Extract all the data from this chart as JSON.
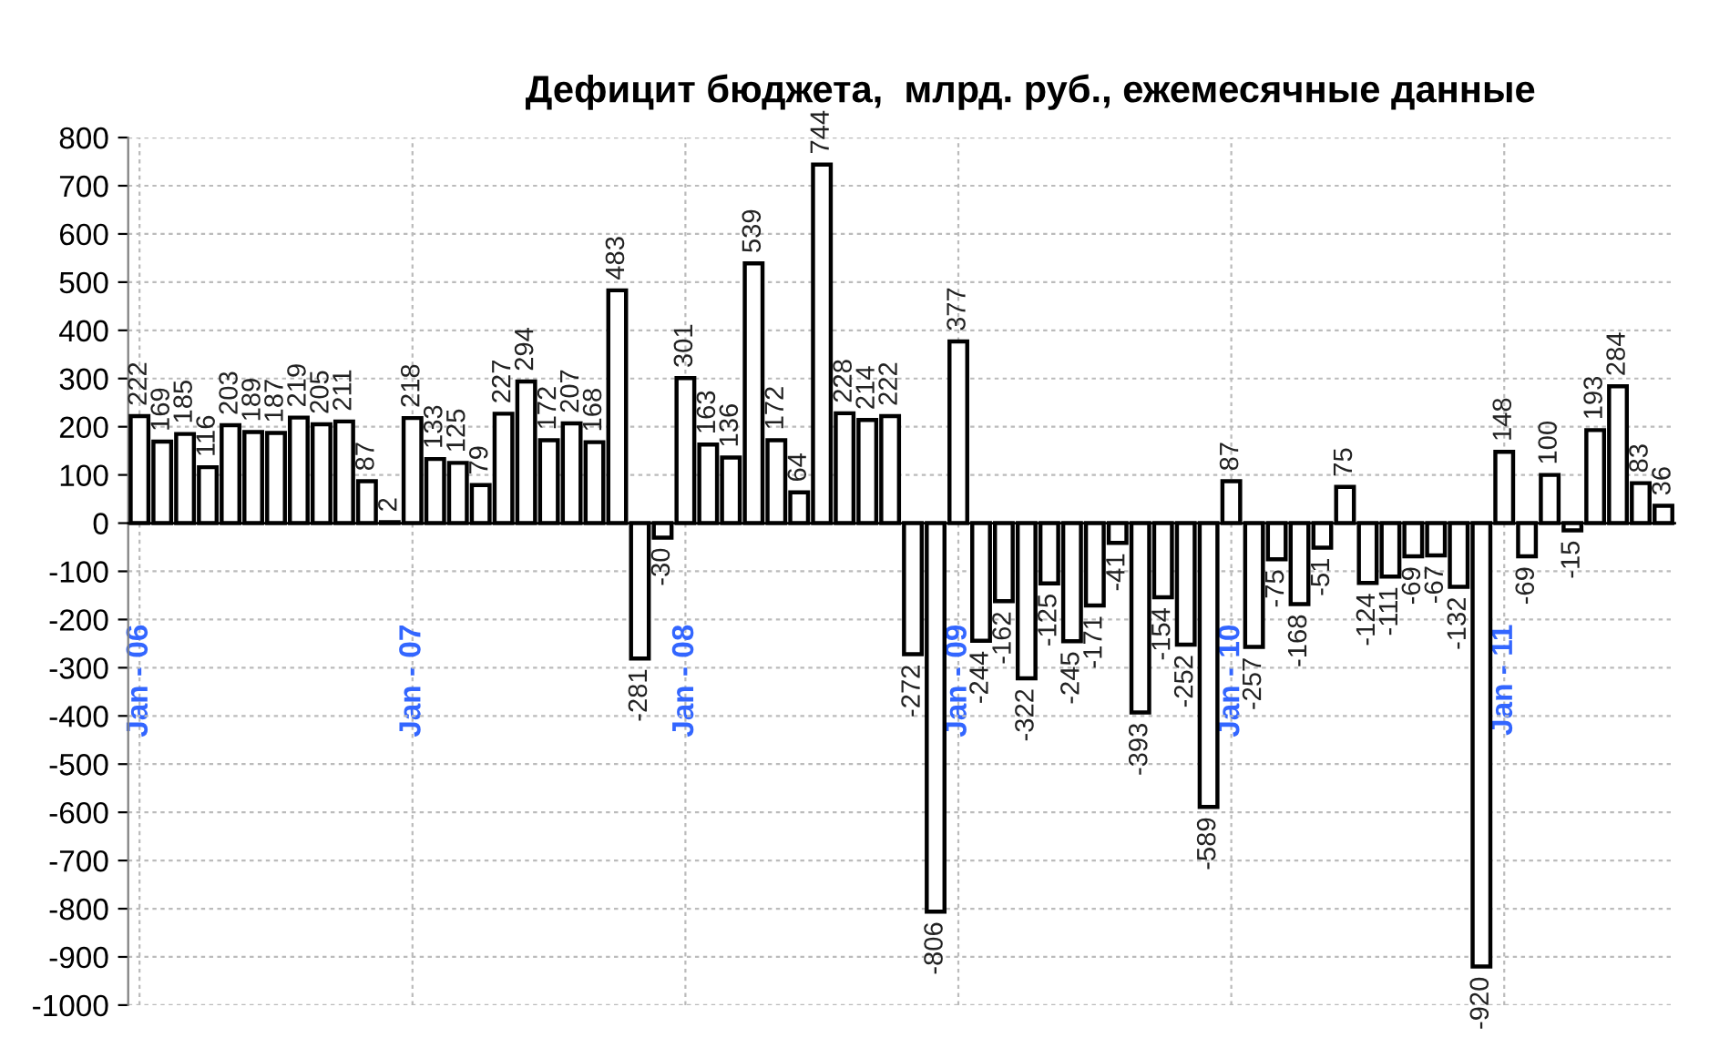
{
  "chart_data": {
    "type": "bar",
    "title": "Дефицит бюджета,  млрд. руб., ежемесячные данные",
    "categories": [
      "Jan - 06",
      null,
      null,
      null,
      null,
      null,
      null,
      null,
      null,
      null,
      null,
      null,
      "Jan - 07",
      null,
      null,
      null,
      null,
      null,
      null,
      null,
      null,
      null,
      null,
      null,
      "Jan - 08",
      null,
      null,
      null,
      null,
      null,
      null,
      null,
      null,
      null,
      null,
      null,
      "Jan - 09",
      null,
      null,
      null,
      null,
      null,
      null,
      null,
      null,
      null,
      null,
      null,
      "Jan - 10",
      null,
      null,
      null,
      null,
      null,
      null,
      null,
      null,
      null,
      null,
      null,
      "Jan - 11",
      null,
      null,
      null,
      null,
      null,
      null,
      null
    ],
    "values": [
      222,
      169,
      185,
      116,
      203,
      189,
      187,
      219,
      205,
      211,
      87,
      2,
      218,
      133,
      125,
      79,
      227,
      294,
      172,
      207,
      168,
      483,
      -281,
      -30,
      301,
      163,
      136,
      539,
      172,
      64,
      744,
      228,
      214,
      222,
      -272,
      -806,
      377,
      -244,
      -162,
      -322,
      -125,
      -245,
      -171,
      -41,
      -393,
      -154,
      -252,
      -589,
      87,
      -257,
      -75,
      -168,
      -51,
      75,
      -124,
      -111,
      -69,
      -67,
      -132,
      -920,
      148,
      -69,
      100,
      -15,
      193,
      284,
      83,
      36
    ],
    "color": "#ffffff",
    "ylim": [
      -1000,
      800
    ],
    "yticks": [
      -1000,
      -900,
      -800,
      -700,
      -600,
      -500,
      -400,
      -300,
      -200,
      -100,
      0,
      100,
      200,
      300,
      400,
      500,
      600,
      700,
      800
    ],
    "grid": true,
    "data_labels": true
  }
}
